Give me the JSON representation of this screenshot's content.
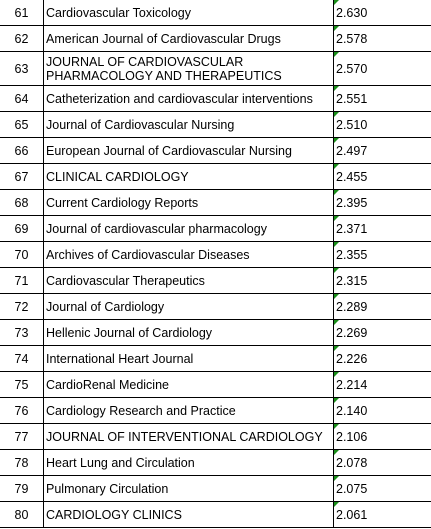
{
  "rows": [
    {
      "rank": "61",
      "journal": "Cardiovascular Toxicology",
      "impact_factor": "2.630"
    },
    {
      "rank": "62",
      "journal": "American Journal of Cardiovascular Drugs",
      "impact_factor": "2.578"
    },
    {
      "rank": "63",
      "journal": "JOURNAL OF CARDIOVASCULAR PHARMACOLOGY AND THERAPEUTICS",
      "impact_factor": "2.570"
    },
    {
      "rank": "64",
      "journal": "Catheterization and cardiovascular interventions",
      "impact_factor": "2.551"
    },
    {
      "rank": "65",
      "journal": "Journal of Cardiovascular Nursing",
      "impact_factor": "2.510"
    },
    {
      "rank": "66",
      "journal": "European Journal of Cardiovascular Nursing",
      "impact_factor": "2.497"
    },
    {
      "rank": "67",
      "journal": "CLINICAL CARDIOLOGY",
      "impact_factor": "2.455"
    },
    {
      "rank": "68",
      "journal": "Current Cardiology Reports",
      "impact_factor": "2.395"
    },
    {
      "rank": "69",
      "journal": "Journal of cardiovascular pharmacology",
      "impact_factor": "2.371"
    },
    {
      "rank": "70",
      "journal": "Archives of Cardiovascular Diseases",
      "impact_factor": "2.355"
    },
    {
      "rank": "71",
      "journal": "Cardiovascular Therapeutics",
      "impact_factor": "2.315"
    },
    {
      "rank": "72",
      "journal": "Journal of Cardiology",
      "impact_factor": "2.289"
    },
    {
      "rank": "73",
      "journal": "Hellenic Journal of Cardiology",
      "impact_factor": "2.269"
    },
    {
      "rank": "74",
      "journal": "International Heart Journal",
      "impact_factor": "2.226"
    },
    {
      "rank": "75",
      "journal": "CardioRenal Medicine",
      "impact_factor": "2.214"
    },
    {
      "rank": "76",
      "journal": "Cardiology Research and Practice",
      "impact_factor": "2.140"
    },
    {
      "rank": "77",
      "journal": "JOURNAL OF INTERVENTIONAL CARDIOLOGY",
      "impact_factor": "2.106"
    },
    {
      "rank": "78",
      "journal": "Heart Lung and Circulation",
      "impact_factor": "2.078"
    },
    {
      "rank": "79",
      "journal": "Pulmonary Circulation",
      "impact_factor": "2.075"
    },
    {
      "rank": "80",
      "journal": "CARDIOLOGY CLINICS",
      "impact_factor": "2.061"
    }
  ],
  "colors": {
    "grid": "#000000",
    "cell_marker": "#1a8f1a",
    "background": "#ffffff"
  }
}
